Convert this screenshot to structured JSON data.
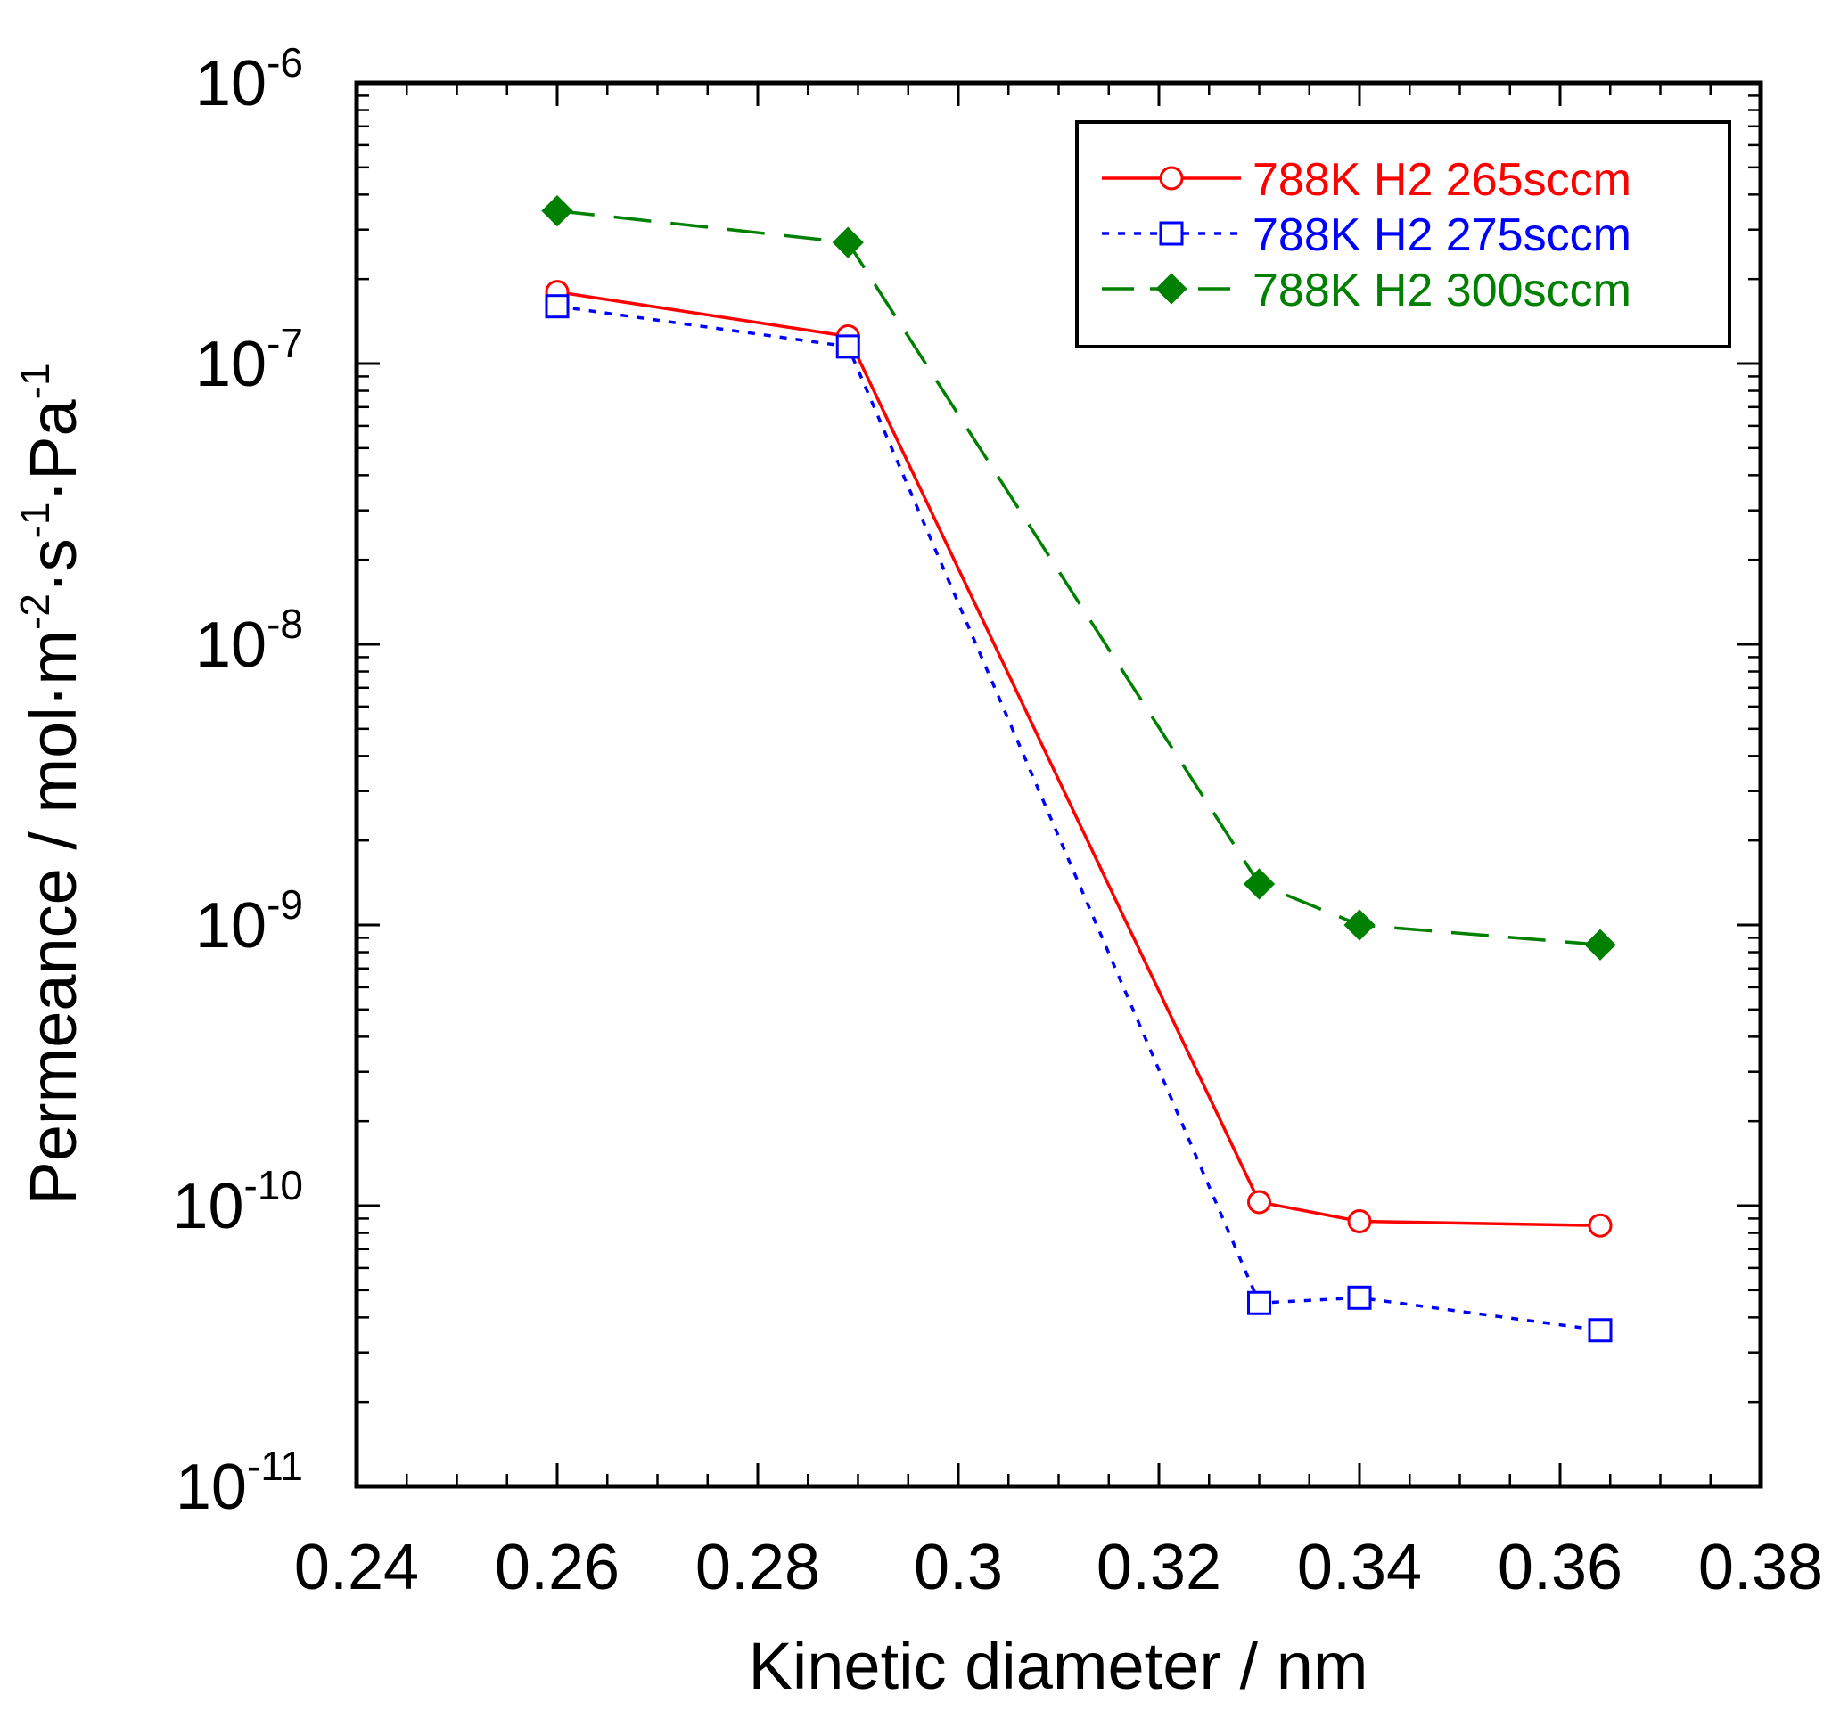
{
  "chart_data": {
    "type": "line",
    "title": "",
    "xlabel": "Kinetic diameter / nm",
    "ylabel": {
      "parts": [
        "Permeance / mol·m",
        "-2",
        "·s",
        "-1",
        "·Pa",
        "-1"
      ]
    },
    "xlim": [
      0.24,
      0.38
    ],
    "ylim": [
      1e-11,
      1e-06
    ],
    "yscale": "log",
    "x_ticks": [
      "0.24",
      "0.26",
      "0.28",
      "0.3",
      "0.32",
      "0.34",
      "0.36",
      "0.38"
    ],
    "x_tick_values": [
      0.24,
      0.26,
      0.28,
      0.3,
      0.32,
      0.34,
      0.36,
      0.38
    ],
    "y_ticks": [
      {
        "base": "10",
        "exp": "-6",
        "value": 1e-06
      },
      {
        "base": "10",
        "exp": "-7",
        "value": 1e-07
      },
      {
        "base": "10",
        "exp": "-8",
        "value": 1e-08
      },
      {
        "base": "10",
        "exp": "-9",
        "value": 1e-09
      },
      {
        "base": "10",
        "exp": "-10",
        "value": 1e-10
      },
      {
        "base": "10",
        "exp": "-11",
        "value": 1e-11
      }
    ],
    "legend_position": "top-right",
    "series": [
      {
        "name": "788K H2 265sccm",
        "color": "#ff0000",
        "marker": "circle-open",
        "line": "solid",
        "x": [
          0.26,
          0.289,
          0.33,
          0.34,
          0.364
        ],
        "values": [
          1.8e-07,
          1.25e-07,
          1.03e-10,
          8.8e-11,
          8.5e-11
        ]
      },
      {
        "name": "788K H2 275sccm",
        "color": "#0000ff",
        "marker": "square-open",
        "line": "dotted",
        "x": [
          0.26,
          0.289,
          0.33,
          0.34,
          0.364
        ],
        "values": [
          1.6e-07,
          1.15e-07,
          4.5e-11,
          4.7e-11,
          3.6e-11
        ]
      },
      {
        "name": "788K H2 300sccm",
        "color": "#008000",
        "marker": "diamond-filled",
        "line": "dashed",
        "x": [
          0.26,
          0.289,
          0.33,
          0.34,
          0.364
        ],
        "values": [
          3.5e-07,
          2.7e-07,
          1.4e-09,
          1e-09,
          8.5e-10
        ]
      }
    ]
  }
}
